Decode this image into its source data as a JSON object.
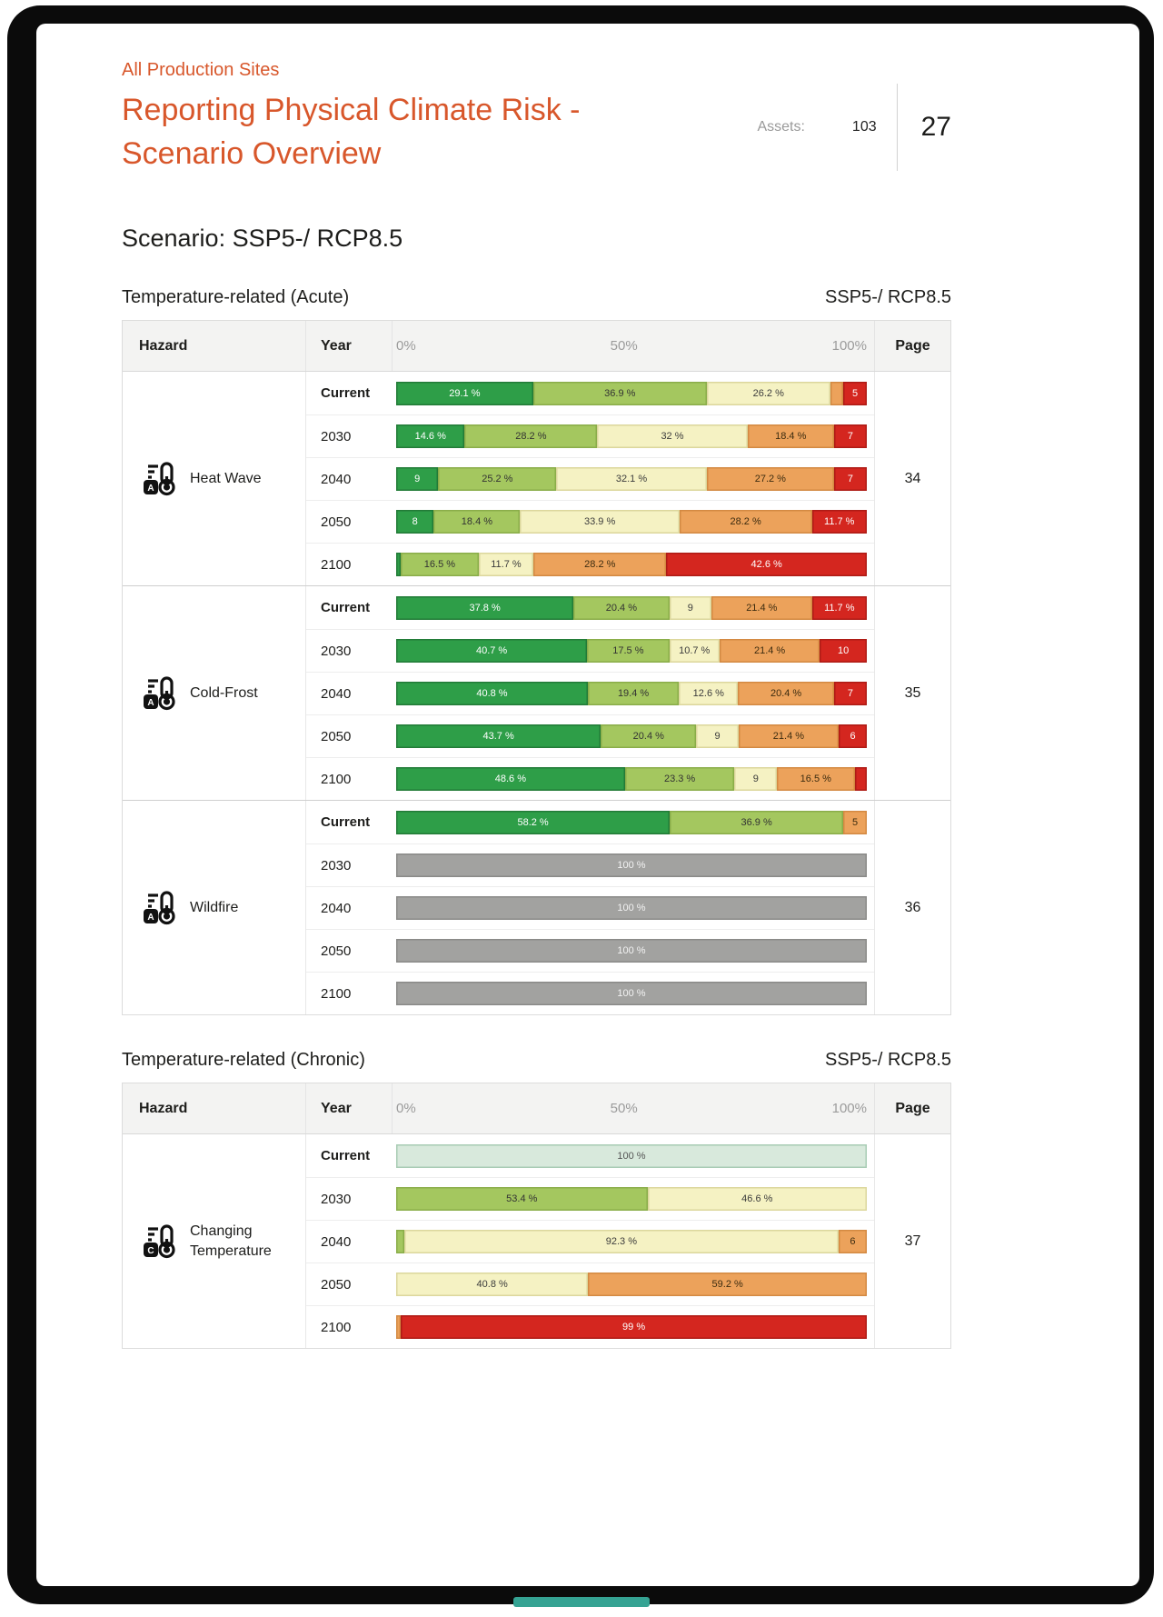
{
  "header": {
    "eyebrow": "All Production Sites",
    "title_line1": "Reporting Physical Climate Risk -",
    "title_line2": "Scenario Overview",
    "assets_label": "Assets:",
    "assets_value": "103",
    "page_number": "27",
    "scenario_heading": "Scenario: SSP5-/ RCP8.5"
  },
  "colors": {
    "accent_orange": "#D8572B",
    "risk_dark_green": "#2E9E48",
    "risk_light_green": "#A4C75F",
    "risk_yellow": "#F5F2C3",
    "risk_orange": "#ECA25B",
    "risk_red": "#D4261F",
    "no_data_gray": "#A2A2A0",
    "current_mint": "#D8E9DC",
    "footer_teal": "#35A393"
  },
  "tables": [
    {
      "section_title": "Temperature-related (Acute)",
      "section_scenario": "SSP5-/ RCP8.5",
      "headers": {
        "hazard": "Hazard",
        "year": "Year",
        "axis": [
          "0%",
          "50%",
          "100%"
        ],
        "page": "Page"
      },
      "groups": [
        {
          "hazard": "Heat Wave",
          "badge": "A",
          "page": "34",
          "rows": [
            {
              "year": "Current",
              "current": true,
              "segments": [
                {
                  "color": "dark-green",
                  "value": 29.1,
                  "label": "29.1 %"
                },
                {
                  "color": "light-green",
                  "value": 36.9,
                  "label": "36.9 %"
                },
                {
                  "color": "yellow",
                  "value": 26.2,
                  "label": "26.2 %"
                },
                {
                  "color": "orange",
                  "value": 2.8,
                  "label": ""
                },
                {
                  "color": "red",
                  "value": 5,
                  "label": "5"
                }
              ]
            },
            {
              "year": "2030",
              "current": false,
              "segments": [
                {
                  "color": "dark-green",
                  "value": 14.6,
                  "label": "14.6 %"
                },
                {
                  "color": "light-green",
                  "value": 28.2,
                  "label": "28.2 %"
                },
                {
                  "color": "yellow",
                  "value": 32,
                  "label": "32 %"
                },
                {
                  "color": "orange",
                  "value": 18.4,
                  "label": "18.4 %"
                },
                {
                  "color": "red",
                  "value": 7,
                  "label": "7"
                }
              ]
            },
            {
              "year": "2040",
              "current": false,
              "segments": [
                {
                  "color": "dark-green",
                  "value": 9,
                  "label": "9"
                },
                {
                  "color": "light-green",
                  "value": 25.2,
                  "label": "25.2 %"
                },
                {
                  "color": "yellow",
                  "value": 32.1,
                  "label": "32.1 %"
                },
                {
                  "color": "orange",
                  "value": 27.2,
                  "label": "27.2 %"
                },
                {
                  "color": "red",
                  "value": 7,
                  "label": "7"
                }
              ]
            },
            {
              "year": "2050",
              "current": false,
              "segments": [
                {
                  "color": "dark-green",
                  "value": 8,
                  "label": "8"
                },
                {
                  "color": "light-green",
                  "value": 18.4,
                  "label": "18.4 %"
                },
                {
                  "color": "yellow",
                  "value": 33.9,
                  "label": "33.9 %"
                },
                {
                  "color": "orange",
                  "value": 28.2,
                  "label": "28.2 %"
                },
                {
                  "color": "red",
                  "value": 11.7,
                  "label": "11.7 %"
                }
              ]
            },
            {
              "year": "2100",
              "current": false,
              "segments": [
                {
                  "color": "dark-green",
                  "value": 1,
                  "label": ""
                },
                {
                  "color": "light-green",
                  "value": 16.5,
                  "label": "16.5 %"
                },
                {
                  "color": "yellow",
                  "value": 11.7,
                  "label": "11.7 %"
                },
                {
                  "color": "orange",
                  "value": 28.2,
                  "label": "28.2 %"
                },
                {
                  "color": "red",
                  "value": 42.6,
                  "label": "42.6 %"
                }
              ]
            }
          ]
        },
        {
          "hazard": "Cold-Frost",
          "badge": "A",
          "page": "35",
          "rows": [
            {
              "year": "Current",
              "current": true,
              "segments": [
                {
                  "color": "dark-green",
                  "value": 37.8,
                  "label": "37.8 %"
                },
                {
                  "color": "light-green",
                  "value": 20.4,
                  "label": "20.4 %"
                },
                {
                  "color": "yellow",
                  "value": 9,
                  "label": "9"
                },
                {
                  "color": "orange",
                  "value": 21.4,
                  "label": "21.4 %"
                },
                {
                  "color": "red",
                  "value": 11.7,
                  "label": "11.7 %"
                }
              ]
            },
            {
              "year": "2030",
              "current": false,
              "segments": [
                {
                  "color": "dark-green",
                  "value": 40.7,
                  "label": "40.7 %"
                },
                {
                  "color": "light-green",
                  "value": 17.5,
                  "label": "17.5 %"
                },
                {
                  "color": "yellow",
                  "value": 10.7,
                  "label": "10.7 %"
                },
                {
                  "color": "orange",
                  "value": 21.4,
                  "label": "21.4 %"
                },
                {
                  "color": "red",
                  "value": 10,
                  "label": "10"
                }
              ]
            },
            {
              "year": "2040",
              "current": false,
              "segments": [
                {
                  "color": "dark-green",
                  "value": 40.8,
                  "label": "40.8 %"
                },
                {
                  "color": "light-green",
                  "value": 19.4,
                  "label": "19.4 %"
                },
                {
                  "color": "yellow",
                  "value": 12.6,
                  "label": "12.6 %"
                },
                {
                  "color": "orange",
                  "value": 20.4,
                  "label": "20.4 %"
                },
                {
                  "color": "red",
                  "value": 7,
                  "label": "7"
                }
              ]
            },
            {
              "year": "2050",
              "current": false,
              "segments": [
                {
                  "color": "dark-green",
                  "value": 43.7,
                  "label": "43.7 %"
                },
                {
                  "color": "light-green",
                  "value": 20.4,
                  "label": "20.4 %"
                },
                {
                  "color": "yellow",
                  "value": 9,
                  "label": "9"
                },
                {
                  "color": "orange",
                  "value": 21.4,
                  "label": "21.4 %"
                },
                {
                  "color": "red",
                  "value": 6,
                  "label": "6"
                }
              ]
            },
            {
              "year": "2100",
              "current": false,
              "segments": [
                {
                  "color": "dark-green",
                  "value": 48.6,
                  "label": "48.6 %"
                },
                {
                  "color": "light-green",
                  "value": 23.3,
                  "label": "23.3 %"
                },
                {
                  "color": "yellow",
                  "value": 9,
                  "label": "9"
                },
                {
                  "color": "orange",
                  "value": 16.5,
                  "label": "16.5 %"
                },
                {
                  "color": "red",
                  "value": 2.6,
                  "label": ""
                }
              ]
            }
          ]
        },
        {
          "hazard": "Wildfire",
          "badge": "A",
          "page": "36",
          "rows": [
            {
              "year": "Current",
              "current": true,
              "segments": [
                {
                  "color": "dark-green",
                  "value": 58.2,
                  "label": "58.2 %"
                },
                {
                  "color": "light-green",
                  "value": 36.9,
                  "label": "36.9 %"
                },
                {
                  "color": "orange",
                  "value": 5,
                  "label": "5"
                }
              ]
            },
            {
              "year": "2030",
              "current": false,
              "segments": [
                {
                  "color": "gray",
                  "value": 100,
                  "label": "100 %"
                }
              ]
            },
            {
              "year": "2040",
              "current": false,
              "segments": [
                {
                  "color": "gray",
                  "value": 100,
                  "label": "100 %"
                }
              ]
            },
            {
              "year": "2050",
              "current": false,
              "segments": [
                {
                  "color": "gray",
                  "value": 100,
                  "label": "100 %"
                }
              ]
            },
            {
              "year": "2100",
              "current": false,
              "segments": [
                {
                  "color": "gray",
                  "value": 100,
                  "label": "100 %"
                }
              ]
            }
          ]
        }
      ]
    },
    {
      "section_title": "Temperature-related (Chronic)",
      "section_scenario": "SSP5-/ RCP8.5",
      "headers": {
        "hazard": "Hazard",
        "year": "Year",
        "axis": [
          "0%",
          "50%",
          "100%"
        ],
        "page": "Page"
      },
      "groups": [
        {
          "hazard": "Changing Temperature",
          "badge": "C",
          "page": "37",
          "rows": [
            {
              "year": "Current",
              "current": true,
              "segments": [
                {
                  "color": "mint",
                  "value": 100,
                  "label": "100 %"
                }
              ]
            },
            {
              "year": "2030",
              "current": false,
              "segments": [
                {
                  "color": "light-green",
                  "value": 53.4,
                  "label": "53.4 %"
                },
                {
                  "color": "yellow",
                  "value": 46.6,
                  "label": "46.6 %"
                }
              ]
            },
            {
              "year": "2040",
              "current": false,
              "segments": [
                {
                  "color": "light-green",
                  "value": 1.7,
                  "label": ""
                },
                {
                  "color": "yellow",
                  "value": 92.3,
                  "label": "92.3 %"
                },
                {
                  "color": "orange",
                  "value": 6,
                  "label": "6"
                }
              ]
            },
            {
              "year": "2050",
              "current": false,
              "segments": [
                {
                  "color": "yellow",
                  "value": 40.8,
                  "label": "40.8 %"
                },
                {
                  "color": "orange",
                  "value": 59.2,
                  "label": "59.2 %"
                }
              ]
            },
            {
              "year": "2100",
              "current": false,
              "segments": [
                {
                  "color": "orange",
                  "value": 1,
                  "label": ""
                },
                {
                  "color": "red",
                  "value": 99,
                  "label": "99 %"
                }
              ]
            }
          ]
        }
      ]
    }
  ]
}
